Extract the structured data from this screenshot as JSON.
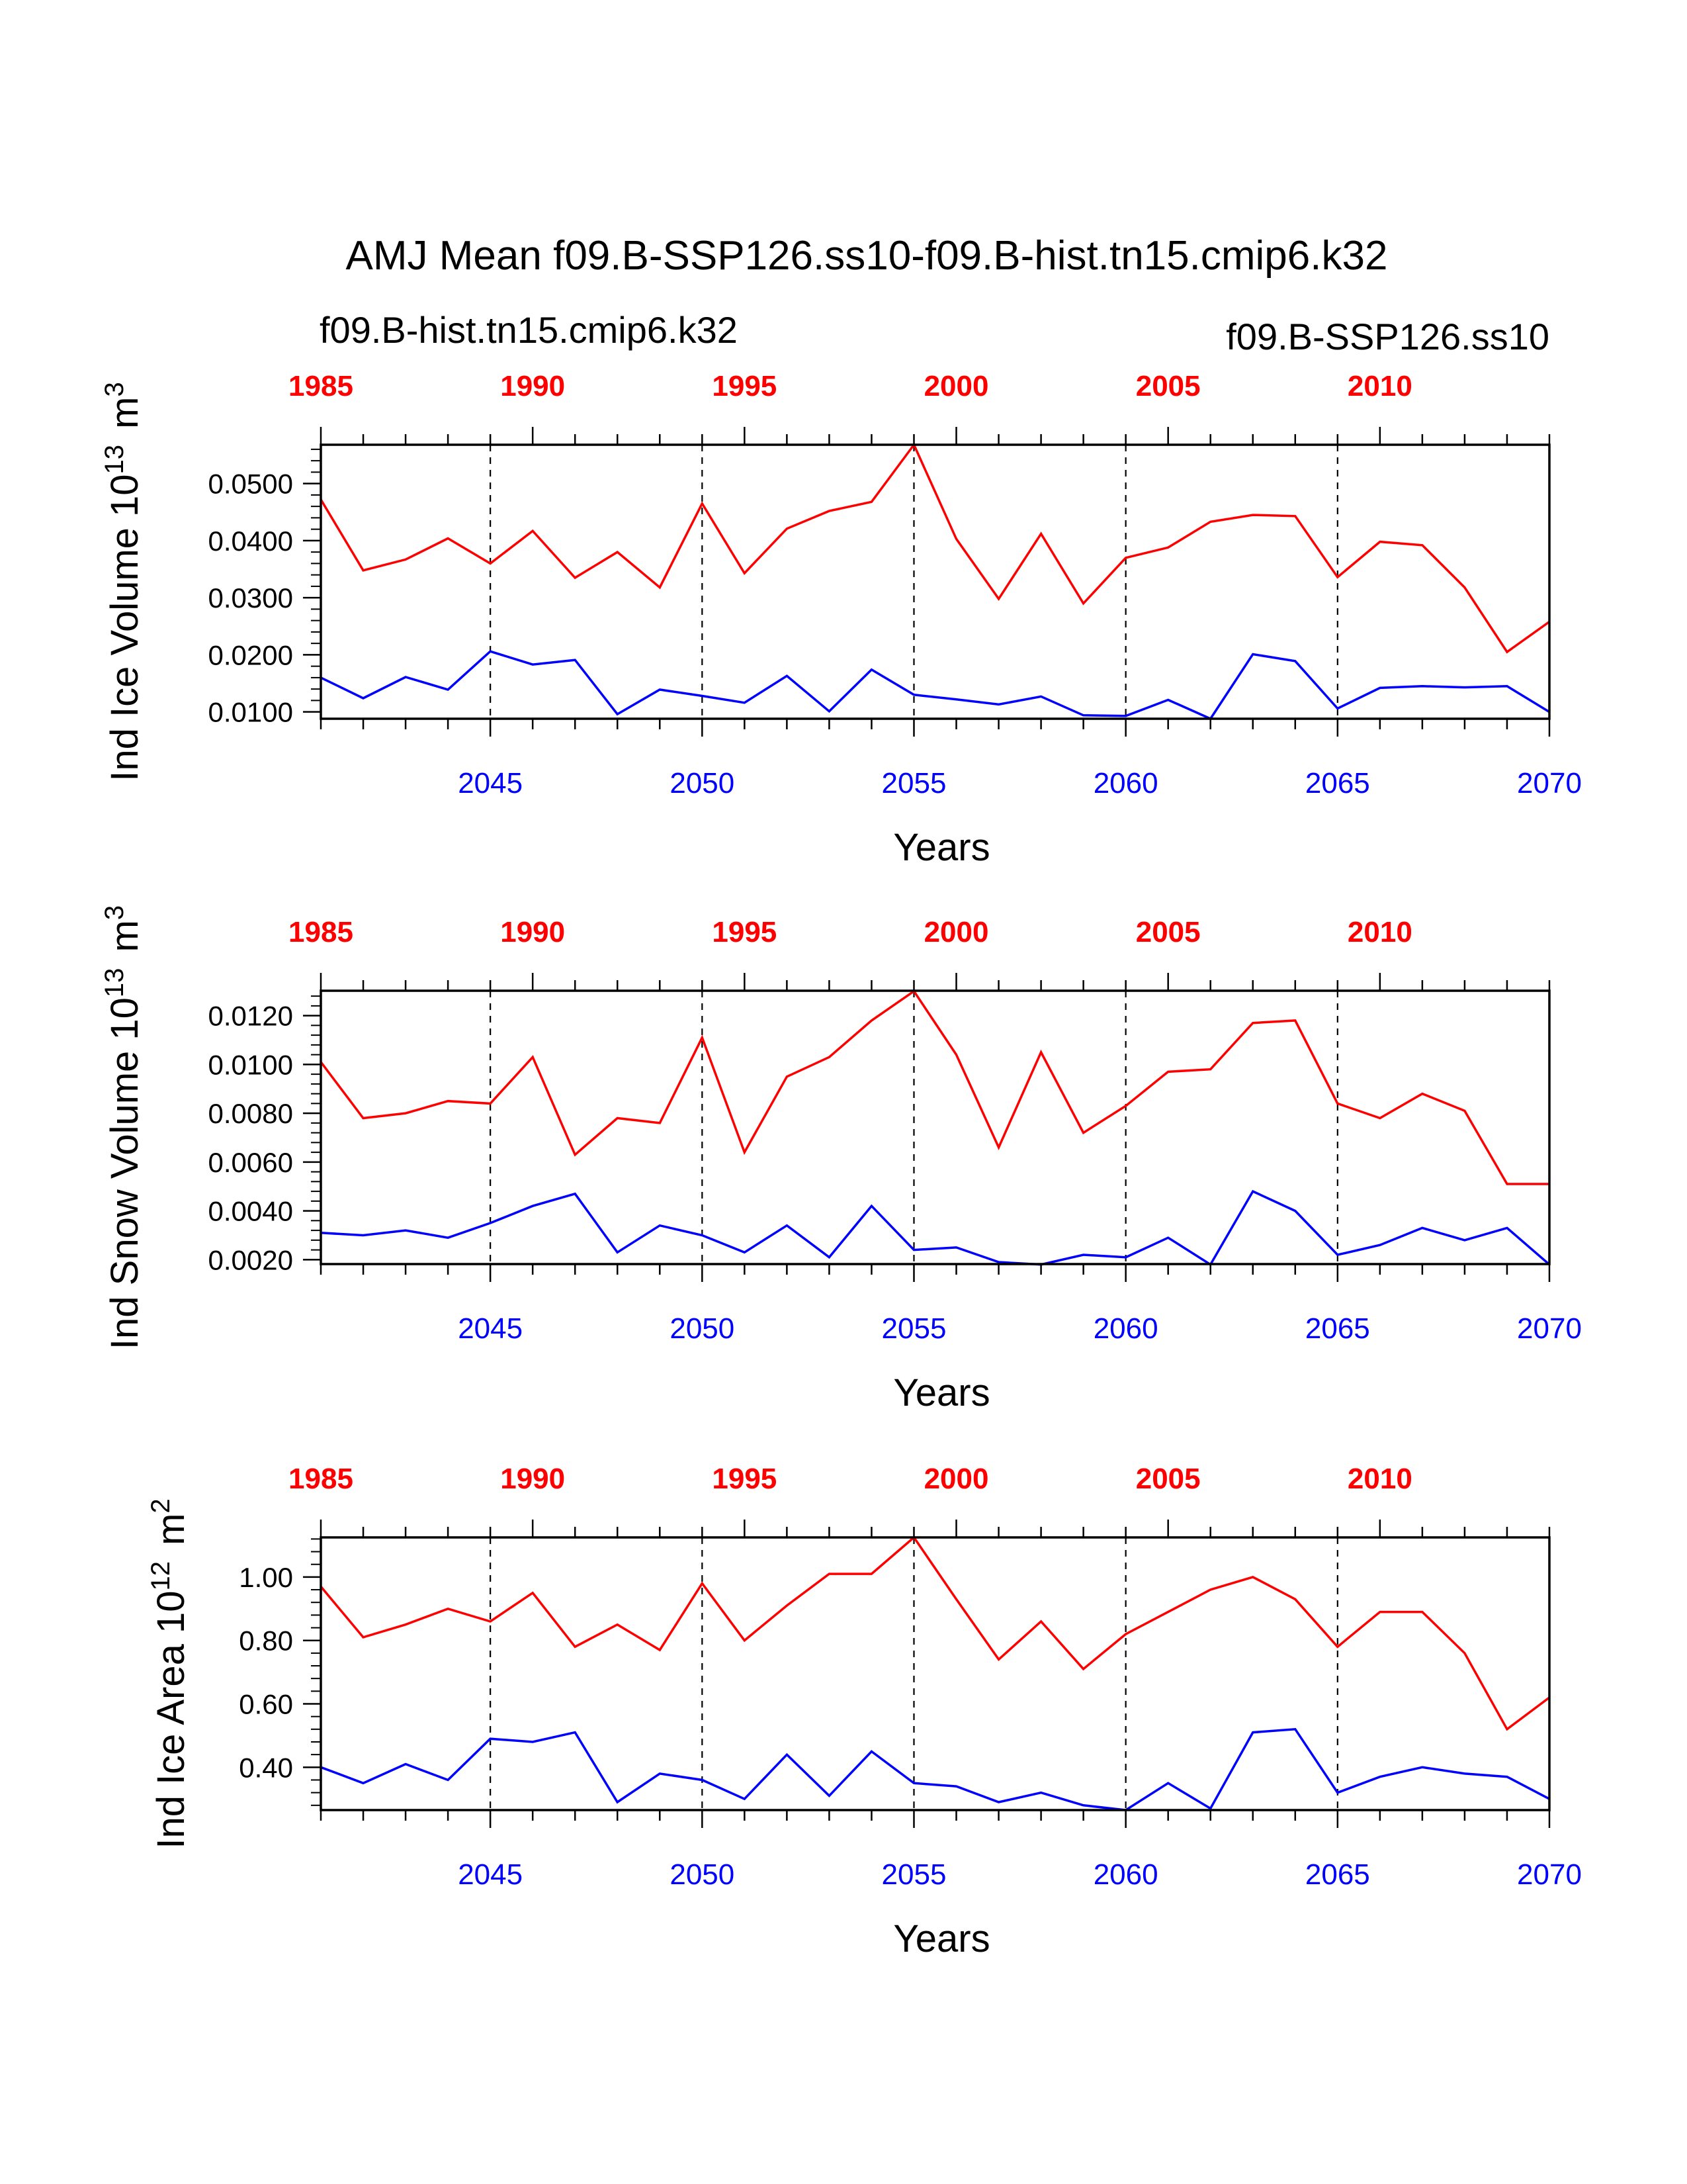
{
  "title": "AMJ Mean f09.B-SSP126.ss10-f09.B-hist.tn15.cmip6.k32",
  "legend": {
    "hist": {
      "label": "f09.B-hist.tn15.cmip6.k32",
      "color": "#ff0000"
    },
    "ssp": {
      "label": "f09.B-SSP126.ss10",
      "color": "#0000ff"
    }
  },
  "chart_data": [
    {
      "type": "line",
      "ylabel_main": "Ind Ice Volume 10",
      "ylabel_exp": "13",
      "ylabel_unit": "m",
      "ylabel_unit_exp": "3",
      "xlabel": "Years",
      "ylim": [
        0.0088,
        0.0568
      ],
      "yticks": [
        0.01,
        0.02,
        0.03,
        0.04,
        0.05
      ],
      "ytick_labels": [
        "0.0100",
        "0.0200",
        "0.0300",
        "0.0400",
        "0.0500"
      ],
      "xlim_bottom": [
        2041,
        2070
      ],
      "xlim_top": [
        1985,
        2014
      ],
      "top_axis_ticks": [
        1985,
        1990,
        1995,
        2000,
        2005,
        2010
      ],
      "top_axis_labels": [
        "1985",
        "1990",
        "1995",
        "2000",
        "2005",
        "2010"
      ],
      "bottom_axis_ticks": [
        2045,
        2050,
        2055,
        2060,
        2065,
        2070
      ],
      "bottom_axis_labels": [
        "2045",
        "2050",
        "2055",
        "2060",
        "2065",
        "2070"
      ],
      "series": [
        {
          "name": "f09.B-hist.tn15.cmip6.k32",
          "color": "#ff0000",
          "x": [
            1985,
            1986,
            1987,
            1988,
            1989,
            1990,
            1991,
            1992,
            1993,
            1994,
            1995,
            1996,
            1997,
            1998,
            1999,
            2000,
            2001,
            2002,
            2003,
            2004,
            2005,
            2006,
            2007,
            2008,
            2009,
            2010,
            2011,
            2012,
            2013,
            2014
          ],
          "values": [
            0.0472,
            0.0348,
            0.0367,
            0.0404,
            0.036,
            0.0417,
            0.0335,
            0.038,
            0.0318,
            0.0465,
            0.0343,
            0.0421,
            0.0452,
            0.0468,
            0.0568,
            0.0403,
            0.0298,
            0.0412,
            0.029,
            0.037,
            0.0388,
            0.0433,
            0.0445,
            0.0443,
            0.0336,
            0.0398,
            0.0392,
            0.0318,
            0.0205,
            0.0258
          ]
        },
        {
          "name": "f09.B-SSP126.ss10",
          "color": "#0000ff",
          "x": [
            2041,
            2042,
            2043,
            2044,
            2045,
            2046,
            2047,
            2048,
            2049,
            2050,
            2051,
            2052,
            2053,
            2054,
            2055,
            2056,
            2057,
            2058,
            2059,
            2060,
            2061,
            2062,
            2063,
            2064,
            2065,
            2066,
            2067,
            2068,
            2069,
            2070
          ],
          "values": [
            0.016,
            0.0124,
            0.0161,
            0.0139,
            0.0206,
            0.0183,
            0.0191,
            0.0096,
            0.0139,
            0.0128,
            0.0116,
            0.0163,
            0.0101,
            0.0174,
            0.013,
            0.0122,
            0.0113,
            0.0127,
            0.0094,
            0.0093,
            0.0121,
            0.0088,
            0.0201,
            0.0189,
            0.0106,
            0.0142,
            0.0145,
            0.0143,
            0.0145,
            0.01
          ]
        }
      ]
    },
    {
      "type": "line",
      "ylabel_main": "Ind Snow Volume 10",
      "ylabel_exp": "13",
      "ylabel_unit": "m",
      "ylabel_unit_exp": "3",
      "xlabel": "Years",
      "ylim": [
        0.00182,
        0.01302
      ],
      "yticks": [
        0.002,
        0.004,
        0.006,
        0.008,
        0.01,
        0.012
      ],
      "ytick_labels": [
        "0.0020",
        "0.0040",
        "0.0060",
        "0.0080",
        "0.0100",
        "0.0120"
      ],
      "xlim_bottom": [
        2041,
        2070
      ],
      "xlim_top": [
        1985,
        2014
      ],
      "top_axis_ticks": [
        1985,
        1990,
        1995,
        2000,
        2005,
        2010
      ],
      "top_axis_labels": [
        "1985",
        "1990",
        "1995",
        "2000",
        "2005",
        "2010"
      ],
      "bottom_axis_ticks": [
        2045,
        2050,
        2055,
        2060,
        2065,
        2070
      ],
      "bottom_axis_labels": [
        "2045",
        "2050",
        "2055",
        "2060",
        "2065",
        "2070"
      ],
      "series": [
        {
          "name": "f09.B-hist.tn15.cmip6.k32",
          "color": "#ff0000",
          "x": [
            1985,
            1986,
            1987,
            1988,
            1989,
            1990,
            1991,
            1992,
            1993,
            1994,
            1995,
            1996,
            1997,
            1998,
            1999,
            2000,
            2001,
            2002,
            2003,
            2004,
            2005,
            2006,
            2007,
            2008,
            2009,
            2010,
            2011,
            2012,
            2013,
            2014
          ],
          "values": [
            0.0101,
            0.0078,
            0.008,
            0.0085,
            0.0084,
            0.0103,
            0.0063,
            0.0078,
            0.0076,
            0.0111,
            0.0064,
            0.0095,
            0.0103,
            0.0118,
            0.013,
            0.0104,
            0.0066,
            0.0105,
            0.0072,
            0.0083,
            0.0097,
            0.0098,
            0.0117,
            0.0118,
            0.0084,
            0.0078,
            0.0088,
            0.0081,
            0.0051,
            0.0051
          ]
        },
        {
          "name": "f09.B-SSP126.ss10",
          "color": "#0000ff",
          "x": [
            2041,
            2042,
            2043,
            2044,
            2045,
            2046,
            2047,
            2048,
            2049,
            2050,
            2051,
            2052,
            2053,
            2054,
            2055,
            2056,
            2057,
            2058,
            2059,
            2060,
            2061,
            2062,
            2063,
            2064,
            2065,
            2066,
            2067,
            2068,
            2069,
            2070
          ],
          "values": [
            0.0031,
            0.003,
            0.0032,
            0.0029,
            0.0035,
            0.0042,
            0.0047,
            0.0023,
            0.0034,
            0.003,
            0.0023,
            0.0034,
            0.0021,
            0.0042,
            0.0024,
            0.0025,
            0.0019,
            0.0018,
            0.0022,
            0.0021,
            0.0029,
            0.0018,
            0.0048,
            0.004,
            0.0022,
            0.0026,
            0.0033,
            0.0028,
            0.0033,
            0.0018
          ]
        }
      ]
    },
    {
      "type": "line",
      "ylabel_main": "Ind Ice Area 10",
      "ylabel_exp": "12",
      "ylabel_unit": "m",
      "ylabel_unit_exp": "2",
      "xlabel": "Years",
      "ylim": [
        0.265,
        1.125
      ],
      "yticks": [
        0.4,
        0.6,
        0.8,
        1.0
      ],
      "ytick_labels": [
        "0.40",
        "0.60",
        "0.80",
        "1.00"
      ],
      "xlim_bottom": [
        2041,
        2070
      ],
      "xlim_top": [
        1985,
        2014
      ],
      "top_axis_ticks": [
        1985,
        1990,
        1995,
        2000,
        2005,
        2010
      ],
      "top_axis_labels": [
        "1985",
        "1990",
        "1995",
        "2000",
        "2005",
        "2010"
      ],
      "bottom_axis_ticks": [
        2045,
        2050,
        2055,
        2060,
        2065,
        2070
      ],
      "bottom_axis_labels": [
        "2045",
        "2050",
        "2055",
        "2060",
        "2065",
        "2070"
      ],
      "series": [
        {
          "name": "f09.B-hist.tn15.cmip6.k32",
          "color": "#ff0000",
          "x": [
            1985,
            1986,
            1987,
            1988,
            1989,
            1990,
            1991,
            1992,
            1993,
            1994,
            1995,
            1996,
            1997,
            1998,
            1999,
            2000,
            2001,
            2002,
            2003,
            2004,
            2005,
            2006,
            2007,
            2008,
            2009,
            2010,
            2011,
            2012,
            2013,
            2014
          ],
          "values": [
            0.97,
            0.81,
            0.85,
            0.9,
            0.86,
            0.95,
            0.78,
            0.85,
            0.77,
            0.98,
            0.8,
            0.91,
            1.01,
            1.01,
            1.125,
            0.93,
            0.74,
            0.86,
            0.71,
            0.82,
            0.89,
            0.96,
            1.0,
            0.93,
            0.78,
            0.89,
            0.89,
            0.76,
            0.52,
            0.62
          ]
        },
        {
          "name": "f09.B-SSP126.ss10",
          "color": "#0000ff",
          "x": [
            2041,
            2042,
            2043,
            2044,
            2045,
            2046,
            2047,
            2048,
            2049,
            2050,
            2051,
            2052,
            2053,
            2054,
            2055,
            2056,
            2057,
            2058,
            2059,
            2060,
            2061,
            2062,
            2063,
            2064,
            2065,
            2066,
            2067,
            2068,
            2069,
            2070
          ],
          "values": [
            0.4,
            0.35,
            0.41,
            0.36,
            0.49,
            0.48,
            0.51,
            0.29,
            0.38,
            0.36,
            0.3,
            0.44,
            0.31,
            0.45,
            0.35,
            0.34,
            0.29,
            0.32,
            0.28,
            0.265,
            0.35,
            0.27,
            0.51,
            0.52,
            0.32,
            0.37,
            0.4,
            0.38,
            0.37,
            0.3
          ]
        }
      ]
    }
  ]
}
